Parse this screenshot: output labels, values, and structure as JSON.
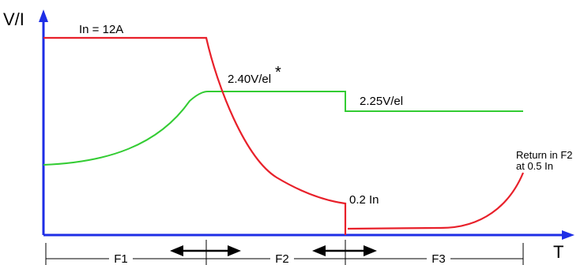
{
  "axes": {
    "y_label": "V/I",
    "x_label": "T"
  },
  "annotations": {
    "current_level": "In =  12A",
    "voltage_boost": "2.40V/el",
    "voltage_boost_mark": "*",
    "voltage_float": "2.25V/el",
    "current_low": "0.2 In",
    "return_line1": "Return in F2",
    "return_line2": "at 0.5 In"
  },
  "phases": [
    "F1",
    "F2",
    "F3"
  ],
  "colors": {
    "current_curve": "#e8202a",
    "voltage_curve": "#33cc33",
    "axis": "#1e2ee6",
    "ink": "#000000"
  }
}
